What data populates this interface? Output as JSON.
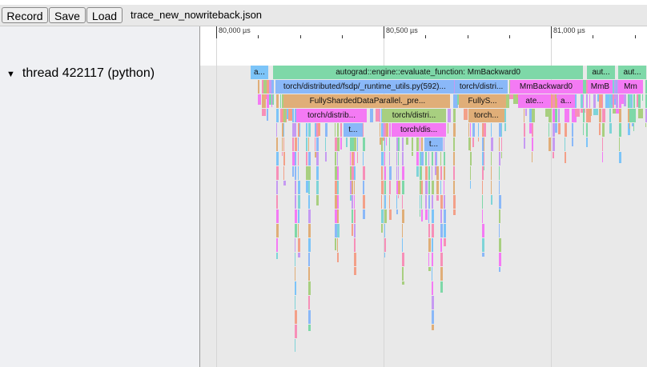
{
  "toolbar": {
    "record": "Record",
    "save": "Save",
    "load": "Load",
    "filename": "trace_new_nowriteback.json"
  },
  "thread": {
    "label": "thread 422117 (python)",
    "expand_icon": "triangle-down"
  },
  "ruler": {
    "ticks": [
      "80,000 µs",
      "80,500 µs",
      "81,000 µs"
    ],
    "tick_values_us": [
      80000,
      80500,
      81000
    ]
  },
  "colors": {
    "green": "#7ed8a8",
    "blue": "#8ab8f8",
    "orange": "#e0ae78",
    "magenta": "#f47af4",
    "lightblue": "#7cc4f8",
    "purple": "#c69af2",
    "pink": "#f78fb8",
    "teal": "#7ed4d8",
    "olive": "#a8cf80",
    "salmon": "#f3a088"
  },
  "slices": [
    {
      "depth": 0,
      "start": 80103,
      "end": 80155,
      "label": "a...",
      "color": "lightblue"
    },
    {
      "depth": 0,
      "start": 80170,
      "end": 81096,
      "label": "autograd::engine::evaluate_function: MmBackward0",
      "color": "green"
    },
    {
      "depth": 0,
      "start": 81108,
      "end": 81191,
      "label": "aut...",
      "color": "green"
    },
    {
      "depth": 0,
      "start": 81201,
      "end": 81285,
      "label": "aut...",
      "color": "green"
    },
    {
      "depth": 1,
      "start": 80177,
      "end": 80710,
      "label": "torch/distributed/fsdp/_runtime_utils.py(592)...",
      "color": "blue"
    },
    {
      "depth": 1,
      "start": 80713,
      "end": 80871,
      "label": "torch/distri...",
      "color": "blue"
    },
    {
      "depth": 1,
      "start": 80878,
      "end": 81093,
      "label": "MmBackward0",
      "color": "magenta"
    },
    {
      "depth": 1,
      "start": 81110,
      "end": 81184,
      "label": "MmB",
      "color": "magenta"
    },
    {
      "depth": 1,
      "start": 81201,
      "end": 81275,
      "label": "Mm",
      "color": "magenta"
    },
    {
      "depth": 2,
      "start": 80208,
      "end": 80696,
      "label": "FullyShardedDataParallel._pre...",
      "color": "orange"
    },
    {
      "depth": 2,
      "start": 80725,
      "end": 80866,
      "label": "FullyS...",
      "color": "orange"
    },
    {
      "depth": 2,
      "start": 80902,
      "end": 81000,
      "label": "ate...",
      "color": "magenta"
    },
    {
      "depth": 2,
      "start": 81019,
      "end": 81072,
      "label": "a...",
      "color": "magenta"
    },
    {
      "depth": 3,
      "start": 80239,
      "end": 80450,
      "label": "torch/distrib...",
      "color": "magenta"
    },
    {
      "depth": 3,
      "start": 80495,
      "end": 80687,
      "label": "torch/distri...",
      "color": "olive"
    },
    {
      "depth": 3,
      "start": 80753,
      "end": 80861,
      "label": "torch...",
      "color": "orange"
    },
    {
      "depth": 4,
      "start": 80380,
      "end": 80438,
      "label": "t...",
      "color": "blue"
    },
    {
      "depth": 4,
      "start": 80524,
      "end": 80687,
      "label": "torch/dis...",
      "color": "magenta"
    },
    {
      "depth": 5,
      "start": 80622,
      "end": 80677,
      "label": "t...",
      "color": "blue"
    }
  ]
}
